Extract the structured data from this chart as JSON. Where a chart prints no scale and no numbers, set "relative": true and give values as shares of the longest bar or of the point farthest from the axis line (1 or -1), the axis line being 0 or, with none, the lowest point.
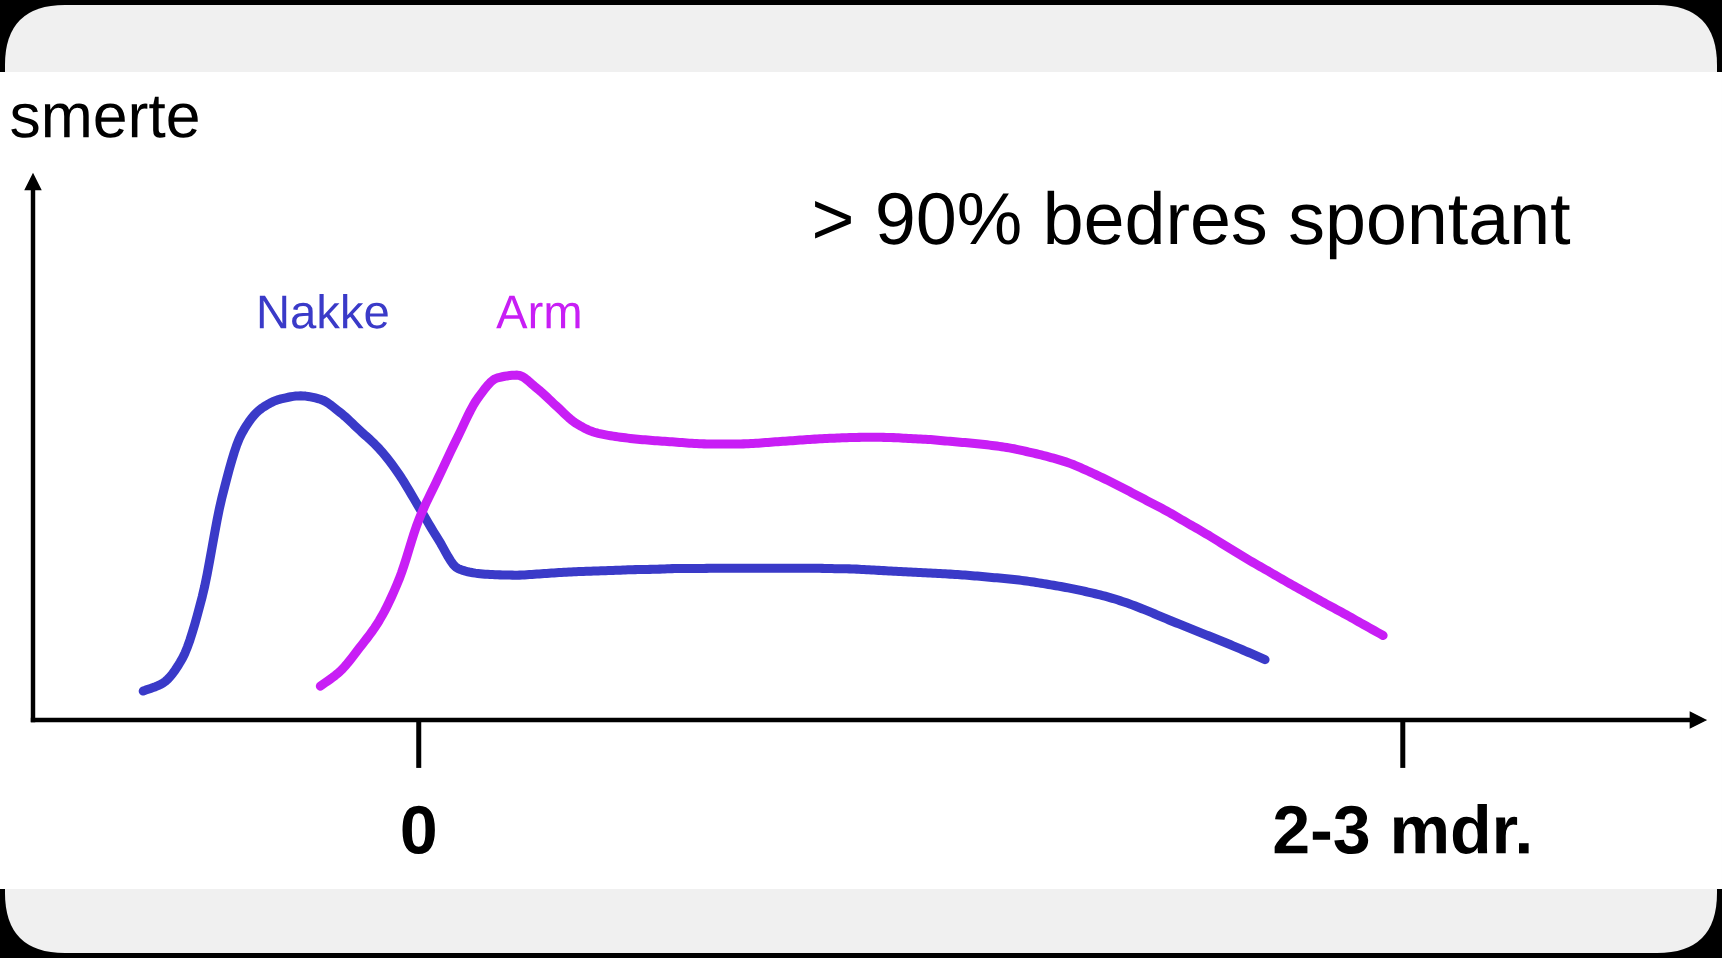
{
  "chart_data": {
    "type": "line",
    "relative": true,
    "ylabel": "smerte",
    "annotations": [
      "> 90% bedres spontant"
    ],
    "tick_labels": "x",
    "categories": [
      null,
      null,
      null,
      null,
      null,
      null,
      null,
      null,
      null,
      null,
      null,
      null,
      null,
      null,
      null,
      null,
      null,
      null,
      null,
      "0",
      null,
      null,
      null,
      null,
      null,
      null,
      null,
      null,
      null,
      null,
      null,
      null,
      null,
      null,
      null,
      null,
      null,
      null,
      null,
      null,
      null,
      null,
      null,
      null,
      null,
      null,
      null,
      null,
      null,
      null,
      null,
      null,
      null,
      null,
      null,
      null,
      null,
      null,
      null,
      null,
      null,
      null,
      null,
      null,
      null,
      null,
      null,
      null,
      null,
      "2-3 mdr.",
      null,
      null,
      null,
      null,
      null,
      null,
      null,
      null,
      null,
      null,
      null,
      null,
      null,
      null,
      null
    ],
    "series": [
      {
        "name": "Nakke",
        "color": "#3a3ac8",
        "values": [
          null,
          null,
          null,
          null,
          null,
          0.084,
          0.107,
          0.18,
          0.358,
          0.645,
          0.83,
          0.903,
          0.931,
          0.94,
          0.93,
          0.892,
          0.84,
          0.786,
          0.712,
          0.618,
          0.523,
          0.439,
          0.425,
          0.421,
          0.42,
          0.423,
          0.427,
          0.43,
          0.432,
          0.434,
          0.436,
          0.437,
          0.439,
          0.439,
          0.44,
          0.44,
          0.44,
          0.44,
          0.44,
          0.44,
          0.439,
          0.438,
          0.435,
          0.432,
          0.429,
          0.426,
          0.423,
          0.419,
          0.414,
          0.409,
          0.402,
          0.393,
          0.383,
          0.371,
          0.357,
          0.339,
          0.317,
          0.293,
          0.27,
          0.247,
          0.224,
          0.2,
          0.175,
          null,
          null,
          null,
          null,
          null,
          null,
          null,
          null,
          null,
          null,
          null,
          null,
          null,
          null,
          null,
          null,
          null,
          null,
          null,
          null,
          null,
          null
        ]
      },
      {
        "name": "Arm",
        "color": "#c81ef5",
        "values": [
          null,
          null,
          null,
          null,
          null,
          null,
          null,
          null,
          null,
          null,
          null,
          null,
          null,
          null,
          0.098,
          0.141,
          0.21,
          0.289,
          0.408,
          0.58,
          0.703,
          0.823,
          0.933,
          0.992,
          1.0,
          0.962,
          0.91,
          0.86,
          0.833,
          0.822,
          0.815,
          0.81,
          0.806,
          0.802,
          0.8,
          0.8,
          0.802,
          0.806,
          0.81,
          0.814,
          0.817,
          0.819,
          0.82,
          0.819,
          0.816,
          0.813,
          0.808,
          0.803,
          0.797,
          0.789,
          0.777,
          0.763,
          0.746,
          0.722,
          0.695,
          0.666,
          0.636,
          0.606,
          0.573,
          0.54,
          0.505,
          0.47,
          0.437,
          0.404,
          0.372,
          0.34,
          0.309,
          0.277,
          0.245,
          null,
          null,
          null,
          null,
          null,
          null,
          null,
          null,
          null,
          null,
          null,
          null,
          null,
          null,
          null,
          null
        ]
      }
    ]
  }
}
